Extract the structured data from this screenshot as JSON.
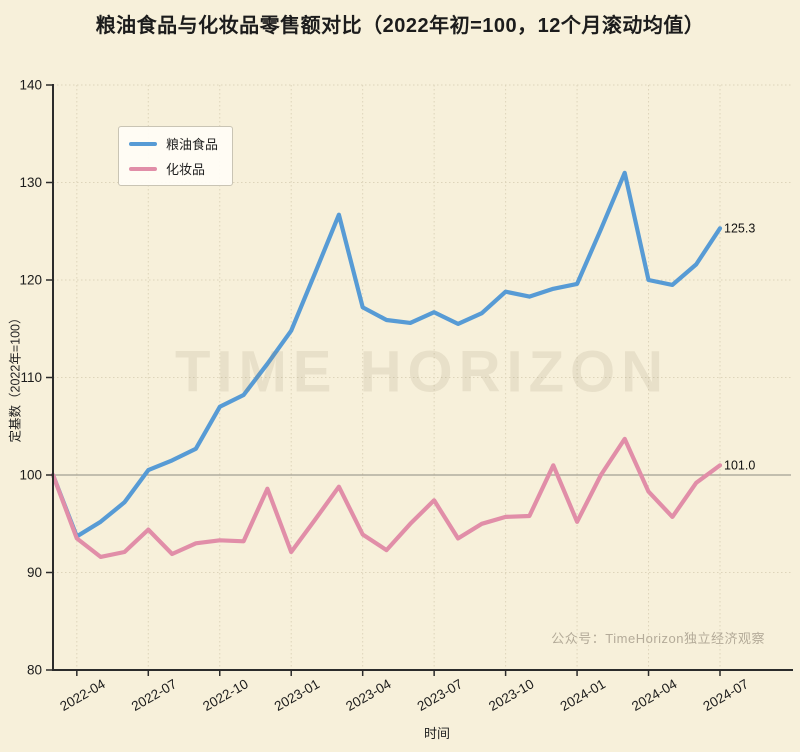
{
  "title": "粮油食品与化妆品零售额对比（2022年初=100，12个月滚动均值）",
  "watermark": "TIME HORIZON",
  "attribution": "公众号：TimeHorizon独立经济观察",
  "axis": {
    "xlabel": "时间",
    "ylabel": "定基数（2022年=100）"
  },
  "colors": {
    "background": "#f7f0da",
    "spine": "#2b2b2b",
    "grid_dotted": "#ddd4ba",
    "reference_line": "#a3a095",
    "tick_label": "#1b1b1b",
    "end_label": "#111111"
  },
  "chart_data": {
    "type": "line",
    "x": [
      "2022-03",
      "2022-04",
      "2022-05",
      "2022-06",
      "2022-07",
      "2022-08",
      "2022-09",
      "2022-10",
      "2022-11",
      "2022-12",
      "2023-01",
      "2023-02",
      "2023-03",
      "2023-04",
      "2023-05",
      "2023-06",
      "2023-07",
      "2023-08",
      "2023-09",
      "2023-10",
      "2023-11",
      "2023-12",
      "2024-01",
      "2024-02",
      "2024-03",
      "2024-04",
      "2024-05",
      "2024-06",
      "2024-07"
    ],
    "series": [
      {
        "name": "粮油食品",
        "color": "#579bd5",
        "end_label": "125.3",
        "values": [
          100.0,
          93.7,
          95.2,
          97.2,
          100.5,
          101.5,
          102.7,
          107.0,
          108.2,
          111.4,
          114.8,
          120.7,
          126.7,
          117.2,
          115.9,
          115.6,
          116.7,
          115.5,
          116.6,
          118.8,
          118.3,
          119.1,
          119.6,
          125.2,
          131.0,
          120.0,
          119.5,
          121.6,
          125.3
        ]
      },
      {
        "name": "化妆品",
        "color": "#e18ea8",
        "end_label": "101.0",
        "values": [
          100.0,
          93.5,
          91.6,
          92.1,
          94.4,
          91.9,
          93.0,
          93.3,
          93.2,
          98.6,
          92.1,
          95.4,
          98.8,
          93.9,
          92.3,
          95.0,
          97.4,
          93.5,
          95.0,
          95.7,
          95.8,
          101.0,
          95.2,
          100.0,
          103.7,
          98.3,
          95.7,
          99.2,
          101.0
        ]
      }
    ],
    "xlabel": "时间",
    "ylabel": "定基数（2022年=100）",
    "ylim": [
      80,
      140
    ],
    "yticks": [
      80,
      90,
      100,
      110,
      120,
      130,
      140
    ],
    "xticks": [
      "2022-04",
      "2022-07",
      "2022-10",
      "2023-01",
      "2023-04",
      "2023-07",
      "2023-10",
      "2024-01",
      "2024-04",
      "2024-07"
    ],
    "reference_line": 100,
    "grid": "dotted",
    "legend_position": "upper-left"
  }
}
